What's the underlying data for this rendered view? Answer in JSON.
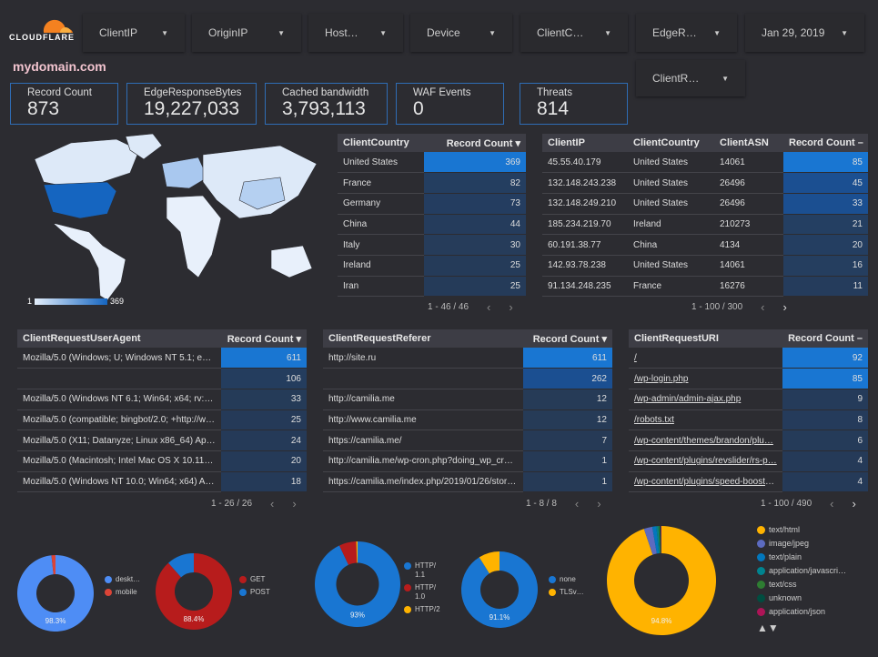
{
  "brand": {
    "name": "CLOUDFLARE",
    "logo_color": "#f48120"
  },
  "filters": [
    {
      "label": "ClientIP"
    },
    {
      "label": "OriginIP"
    },
    {
      "label": "Host…"
    },
    {
      "label": "Device"
    },
    {
      "label": "ClientC…"
    },
    {
      "label": "EdgeR…"
    },
    {
      "label": "Jan 29, 2019"
    },
    {
      "label": "ClientR…"
    }
  ],
  "page_title": "mydomain.com",
  "kpis": [
    {
      "label": "Record Count",
      "value": "873"
    },
    {
      "label": "EdgeResponseBytes",
      "value": "19,227,033"
    },
    {
      "label": "Cached bandwidth",
      "value": "3,793,113"
    },
    {
      "label": "WAF Events",
      "value": "0"
    },
    {
      "label": "Threats",
      "value": "814"
    }
  ],
  "map": {
    "legend_min": "1",
    "legend_max": "369",
    "colors": {
      "low": "#c6dcf5",
      "high": "#1565c0"
    }
  },
  "tables": {
    "country": {
      "headers": [
        "ClientCountry",
        "Record Count ▾"
      ],
      "max": 369,
      "rows": [
        [
          "United States",
          "369"
        ],
        [
          "France",
          "82"
        ],
        [
          "Germany",
          "73"
        ],
        [
          "China",
          "44"
        ],
        [
          "Italy",
          "30"
        ],
        [
          "Ireland",
          "25"
        ],
        [
          "Iran",
          "25"
        ]
      ],
      "pager": "1 - 46 / 46"
    },
    "ip": {
      "headers": [
        "ClientIP",
        "ClientCountry",
        "ClientASN",
        "Record Count –"
      ],
      "max": 85,
      "rows": [
        [
          "45.55.40.179",
          "United States",
          "14061",
          "85"
        ],
        [
          "132.148.243.238",
          "United States",
          "26496",
          "45"
        ],
        [
          "132.148.249.210",
          "United States",
          "26496",
          "33"
        ],
        [
          "185.234.219.70",
          "Ireland",
          "210273",
          "21"
        ],
        [
          "60.191.38.77",
          "China",
          "4134",
          "20"
        ],
        [
          "142.93.78.238",
          "United States",
          "14061",
          "16"
        ],
        [
          "91.134.248.235",
          "France",
          "16276",
          "11"
        ]
      ],
      "pager": "1 - 100 / 300"
    },
    "useragent": {
      "headers": [
        "ClientRequestUserAgent",
        "Record Count ▾"
      ],
      "max": 611,
      "rows": [
        [
          "Mozilla/5.0 (Windows; U; Windows NT 5.1; en-U…",
          "611"
        ],
        [
          "",
          "106"
        ],
        [
          "Mozilla/5.0 (Windows NT 6.1; Win64; x64; rv:64.…",
          "33"
        ],
        [
          "Mozilla/5.0 (compatible; bingbot/2.0; +http://w…",
          "25"
        ],
        [
          "Mozilla/5.0 (X11; Datanyze; Linux x86_64) Appl…",
          "24"
        ],
        [
          "Mozilla/5.0 (Macintosh; Intel Mac OS X 10.11; r…",
          "20"
        ],
        [
          "Mozilla/5.0 (Windows NT 10.0; Win64; x64) App…",
          "18"
        ]
      ],
      "pager": "1 - 26 / 26"
    },
    "referer": {
      "headers": [
        "ClientRequestReferer",
        "Record Count ▾"
      ],
      "max": 611,
      "rows": [
        [
          "http://site.ru",
          "611"
        ],
        [
          "",
          "262"
        ],
        [
          "http://camilia.me",
          "12"
        ],
        [
          "http://www.camilia.me",
          "12"
        ],
        [
          "https://camilia.me/",
          "7"
        ],
        [
          "http://camilia.me/wp-cron.php?doing_wp_cron…",
          "1"
        ],
        [
          "https://camilia.me/index.php/2019/01/26/stor…",
          "1"
        ]
      ],
      "pager": "1 - 8 / 8"
    },
    "uri": {
      "headers": [
        "ClientRequestURI",
        "Record Count –"
      ],
      "max": 92,
      "rows": [
        [
          "/",
          "92"
        ],
        [
          "/wp-login.php",
          "85"
        ],
        [
          "/wp-admin/admin-ajax.php",
          "9"
        ],
        [
          "/robots.txt",
          "8"
        ],
        [
          "/wp-content/themes/brandon/plu…",
          "6"
        ],
        [
          "/wp-content/plugins/revslider/rs-p…",
          "4"
        ],
        [
          "/wp-content/plugins/speed-booste…",
          "4"
        ]
      ],
      "pager": "1 - 100 / 490"
    }
  },
  "chart_data": [
    {
      "type": "pie",
      "label": "98.3%",
      "slices": [
        {
          "name": "deskt…",
          "value": 98.3,
          "color": "#4e8df5"
        },
        {
          "name": "mobile",
          "value": 1.7,
          "color": "#db4437"
        }
      ]
    },
    {
      "type": "pie",
      "label": "88.4%",
      "slices": [
        {
          "name": "GET",
          "value": 88.4,
          "color": "#b71c1c"
        },
        {
          "name": "POST",
          "value": 11.6,
          "color": "#1976d2"
        }
      ]
    },
    {
      "type": "pie",
      "label": "93%",
      "slices": [
        {
          "name": "HTTP/ 1.1",
          "value": 93,
          "color": "#1976d2"
        },
        {
          "name": "HTTP/ 1.0",
          "value": 6.5,
          "color": "#b71c1c"
        },
        {
          "name": "HTTP/2",
          "value": 0.5,
          "color": "#ffb300"
        }
      ]
    },
    {
      "type": "pie",
      "label": "91.1%",
      "slices": [
        {
          "name": "none",
          "value": 91.1,
          "color": "#1976d2"
        },
        {
          "name": "TLSv…",
          "value": 8.9,
          "color": "#ffb300"
        }
      ]
    },
    {
      "type": "pie",
      "label": "94.8%",
      "slices": [
        {
          "name": "text/html",
          "value": 94.8,
          "color": "#ffb300"
        },
        {
          "name": "image/jpeg",
          "value": 2.5,
          "color": "#5c6bc0"
        },
        {
          "name": "text/plain",
          "value": 1.2,
          "color": "#0277bd"
        },
        {
          "name": "application/javascri…",
          "value": 0.6,
          "color": "#00838f"
        },
        {
          "name": "text/css",
          "value": 0.4,
          "color": "#2e7d32"
        },
        {
          "name": "unknown",
          "value": 0.3,
          "color": "#004d40"
        },
        {
          "name": "application/json",
          "value": 0.2,
          "color": "#ad1457"
        }
      ]
    }
  ],
  "legend_nav": "▲▼"
}
